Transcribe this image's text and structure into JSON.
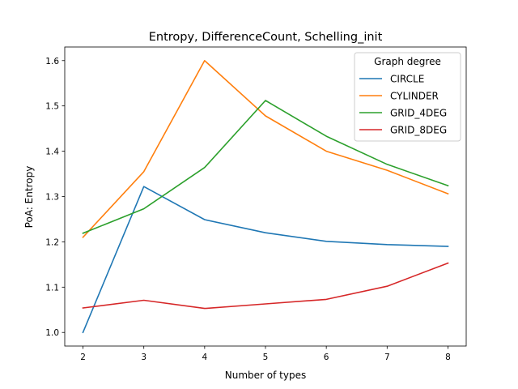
{
  "chart_data": {
    "type": "line",
    "title": "Entropy, DifferenceCount, Schelling_init",
    "xlabel": "Number of types",
    "ylabel": "PoA: Entropy",
    "x": [
      2,
      3,
      4,
      5,
      6,
      7,
      8
    ],
    "xlim": [
      1.7,
      8.3
    ],
    "ylim": [
      0.97,
      1.63
    ],
    "xticks": [
      2,
      3,
      4,
      5,
      6,
      7,
      8
    ],
    "yticks": [
      1.0,
      1.1,
      1.2,
      1.3,
      1.4,
      1.5,
      1.6
    ],
    "ytick_labels": [
      "1.0",
      "1.1",
      "1.2",
      "1.3",
      "1.4",
      "1.5",
      "1.6"
    ],
    "grid": false,
    "legend": {
      "title": "Graph degree",
      "position": "top-right"
    },
    "series": [
      {
        "name": "CIRCLE",
        "color": "#1f77b4",
        "values": [
          1.0,
          1.322,
          1.249,
          1.22,
          1.201,
          1.194,
          1.19
        ]
      },
      {
        "name": "CYLINDER",
        "color": "#ff7f0e",
        "values": [
          1.21,
          1.355,
          1.6,
          1.478,
          1.4,
          1.358,
          1.306
        ]
      },
      {
        "name": "GRID_4DEG",
        "color": "#2ca02c",
        "values": [
          1.219,
          1.273,
          1.364,
          1.512,
          1.433,
          1.371,
          1.324
        ]
      },
      {
        "name": "GRID_8DEG",
        "color": "#d62728",
        "values": [
          1.054,
          1.071,
          1.053,
          1.063,
          1.073,
          1.102,
          1.153
        ]
      }
    ]
  }
}
